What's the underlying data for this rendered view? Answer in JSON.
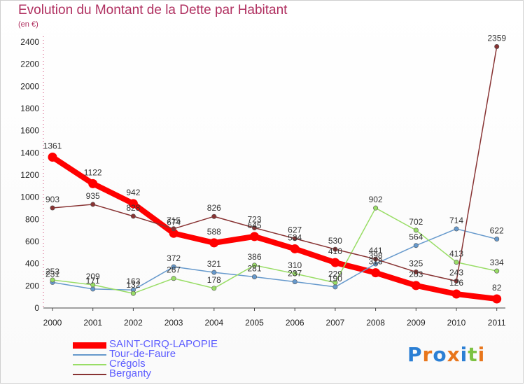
{
  "title": "Evolution du Montant de la Dette par Habitant",
  "subtitle": "(en €)",
  "brand": {
    "letters": [
      "P",
      "r",
      "o",
      "x",
      "i",
      "t",
      "i"
    ],
    "colors": [
      "#2b7fd4",
      "#e8761c",
      "#2b7fd4",
      "#e8761c",
      "#2b7fd4",
      "#7cc242",
      "#e8761c"
    ]
  },
  "chart_data": {
    "type": "line",
    "x": [
      "2000",
      "2001",
      "2002",
      "2003",
      "2004",
      "2005",
      "2006",
      "2007",
      "2008",
      "2009",
      "2010",
      "2011"
    ],
    "ylim": [
      0,
      2400
    ],
    "yticks": [
      "0",
      "200",
      "400",
      "600",
      "800",
      "1000",
      "1200",
      "1400",
      "1600",
      "1800",
      "2000",
      "2200",
      "2400"
    ],
    "grid": false,
    "legend_position": "bottom-left",
    "series": [
      {
        "name": "SAINT-CIRQ-LAPOPIE",
        "color": "#ff0000",
        "width": 8,
        "values": [
          1361,
          1122,
          942,
          674,
          588,
          645,
          534,
          410,
          318,
          203,
          126,
          82
        ]
      },
      {
        "name": "Tour-de-Faure",
        "color": "#6699cc",
        "width": 1.5,
        "values": [
          231,
          171,
          163,
          372,
          321,
          281,
          237,
          190,
          398,
          564,
          714,
          622
        ]
      },
      {
        "name": "Crégols",
        "color": "#99dd66",
        "width": 1.5,
        "values": [
          253,
          209,
          132,
          267,
          178,
          386,
          310,
          229,
          902,
          702,
          413,
          334
        ]
      },
      {
        "name": "Berganty",
        "color": "#883333",
        "width": 1.5,
        "values": [
          903,
          935,
          828,
          715,
          826,
          723,
          627,
          530,
          441,
          325,
          243,
          2359
        ]
      }
    ]
  }
}
